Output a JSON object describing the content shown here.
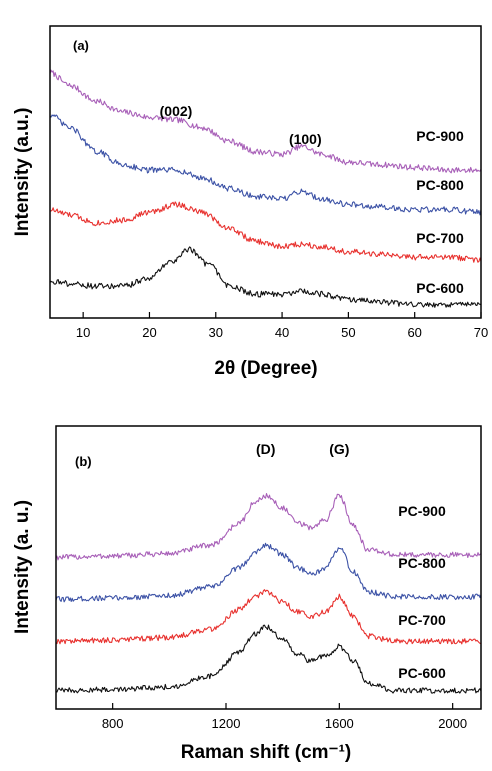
{
  "colors": {
    "PC-600": "#111111",
    "PC-700": "#e8322f",
    "PC-800": "#3c52a6",
    "PC-900": "#a860b8"
  },
  "chart_data": [
    {
      "panel": "(a)",
      "type": "line",
      "xlabel": "2θ (Degree)",
      "ylabel": "Intensity (a.u.)",
      "xlim": [
        5,
        70
      ],
      "ylim": [
        0,
        1
      ],
      "x_ticks": [
        10,
        20,
        30,
        40,
        50,
        60,
        70
      ],
      "y_ticks_shown": false,
      "peak_labels": [
        {
          "text": "(002)",
          "x": 24
        },
        {
          "text": "(100)",
          "x": 43.5
        }
      ],
      "series": [
        {
          "name": "PC-900",
          "x": [
            5,
            8,
            12,
            16,
            20,
            24,
            28,
            32,
            36,
            40,
            43,
            46,
            50,
            55,
            60,
            65,
            70
          ],
          "y": [
            0.9,
            0.85,
            0.79,
            0.75,
            0.73,
            0.72,
            0.69,
            0.64,
            0.6,
            0.59,
            0.62,
            0.59,
            0.56,
            0.55,
            0.54,
            0.53,
            0.53
          ]
        },
        {
          "name": "PC-800",
          "x": [
            5,
            8,
            12,
            16,
            20,
            24,
            28,
            32,
            36,
            40,
            43,
            46,
            50,
            55,
            60,
            65,
            70
          ],
          "y": [
            0.74,
            0.69,
            0.6,
            0.55,
            0.53,
            0.53,
            0.5,
            0.46,
            0.43,
            0.42,
            0.45,
            0.42,
            0.4,
            0.39,
            0.38,
            0.38,
            0.37
          ]
        },
        {
          "name": "PC-700",
          "x": [
            5,
            8,
            12,
            16,
            20,
            24,
            28,
            32,
            36,
            40,
            43,
            46,
            50,
            55,
            60,
            65,
            70
          ],
          "y": [
            0.38,
            0.36,
            0.33,
            0.34,
            0.37,
            0.4,
            0.37,
            0.31,
            0.26,
            0.24,
            0.25,
            0.24,
            0.22,
            0.21,
            0.2,
            0.2,
            0.19
          ]
        },
        {
          "name": "PC-600",
          "x": [
            5,
            8,
            12,
            16,
            20,
            23,
            26,
            29,
            32,
            36,
            40,
            43,
            46,
            50,
            55,
            60,
            65,
            70
          ],
          "y": [
            0.11,
            0.1,
            0.09,
            0.09,
            0.12,
            0.18,
            0.23,
            0.17,
            0.09,
            0.06,
            0.06,
            0.07,
            0.06,
            0.04,
            0.03,
            0.02,
            0.02,
            0.02
          ]
        }
      ],
      "series_labels": [
        "PC-900",
        "PC-800",
        "PC-700",
        "PC-600"
      ]
    },
    {
      "panel": "(b)",
      "type": "line",
      "xlabel": "Raman shift (cm⁻¹)",
      "ylabel": "Intensity (a. u.)",
      "xlim": [
        600,
        2100
      ],
      "ylim": [
        0,
        1
      ],
      "x_ticks": [
        800,
        1200,
        1600,
        2000
      ],
      "y_ticks_shown": false,
      "peak_labels": [
        {
          "text": "(D)",
          "x": 1340
        },
        {
          "text": "(G)",
          "x": 1600
        }
      ],
      "series": [
        {
          "name": "PC-900",
          "x": [
            600,
            800,
            1000,
            1150,
            1250,
            1300,
            1340,
            1400,
            1450,
            1500,
            1550,
            1600,
            1650,
            1700,
            1800,
            2000,
            2100
          ],
          "y": [
            0.59,
            0.595,
            0.605,
            0.64,
            0.73,
            0.81,
            0.84,
            0.79,
            0.73,
            0.71,
            0.74,
            0.84,
            0.72,
            0.62,
            0.6,
            0.6,
            0.6
          ]
        },
        {
          "name": "PC-800",
          "x": [
            600,
            800,
            1000,
            1150,
            1250,
            1300,
            1340,
            1400,
            1450,
            1500,
            1550,
            1600,
            1650,
            1700,
            1800,
            2000,
            2100
          ],
          "y": [
            0.42,
            0.425,
            0.435,
            0.47,
            0.55,
            0.61,
            0.64,
            0.6,
            0.55,
            0.52,
            0.54,
            0.63,
            0.53,
            0.45,
            0.43,
            0.43,
            0.43
          ]
        },
        {
          "name": "PC-700",
          "x": [
            600,
            800,
            1000,
            1150,
            1250,
            1300,
            1340,
            1400,
            1450,
            1500,
            1550,
            1600,
            1650,
            1700,
            1800,
            2000,
            2100
          ],
          "y": [
            0.25,
            0.255,
            0.265,
            0.3,
            0.38,
            0.43,
            0.45,
            0.41,
            0.37,
            0.35,
            0.37,
            0.43,
            0.35,
            0.27,
            0.25,
            0.25,
            0.25
          ]
        },
        {
          "name": "PC-600",
          "x": [
            600,
            800,
            1000,
            1150,
            1250,
            1300,
            1340,
            1400,
            1450,
            1500,
            1550,
            1600,
            1650,
            1700,
            1800,
            2000,
            2100
          ],
          "y": [
            0.05,
            0.055,
            0.065,
            0.11,
            0.21,
            0.28,
            0.31,
            0.26,
            0.2,
            0.17,
            0.19,
            0.23,
            0.17,
            0.08,
            0.05,
            0.05,
            0.05
          ]
        }
      ],
      "series_labels": [
        "PC-900",
        "PC-800",
        "PC-700",
        "PC-600"
      ]
    }
  ]
}
